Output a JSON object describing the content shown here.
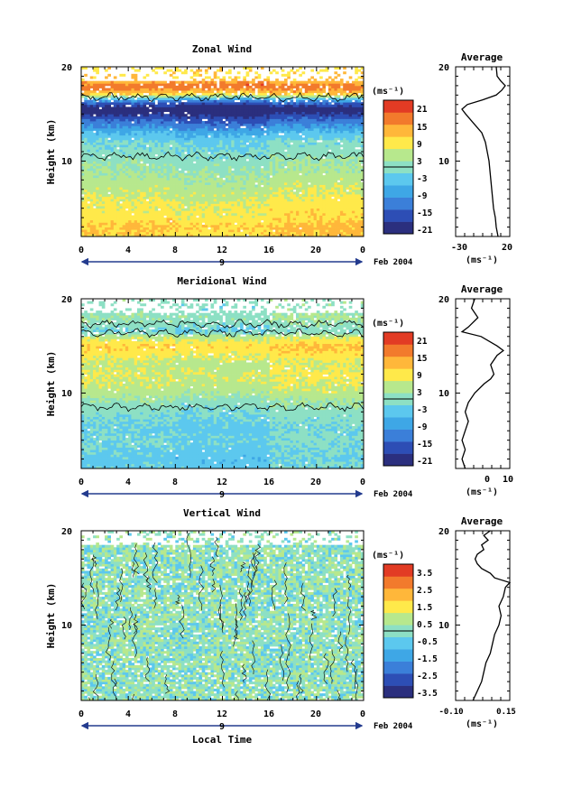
{
  "chart_data": [
    {
      "type": "heatmap",
      "title": "Zonal Wind",
      "ylabel": "Height (km)",
      "xlabel": "",
      "unit": "(ms⁻¹)",
      "x_ticks": [
        "0",
        "4",
        "8",
        "12",
        "16",
        "20",
        "0"
      ],
      "y_ticks": [
        "20",
        "10"
      ],
      "date_marker": "9",
      "date_label": "Feb 2004",
      "xlim": [
        0,
        24
      ],
      "ylim": [
        2,
        20
      ],
      "colorbar": {
        "ticks": [
          "21",
          "15",
          "9",
          "3",
          "-3",
          "-9",
          "-15",
          "-21"
        ],
        "range": [
          -24,
          24
        ]
      },
      "profiles": [
        [
          [
            2,
            10
          ],
          [
            3,
            12
          ],
          [
            4,
            9
          ],
          [
            5,
            8
          ],
          [
            6,
            7
          ],
          [
            7,
            5
          ],
          [
            8,
            4
          ],
          [
            9,
            2
          ],
          [
            10,
            1
          ],
          [
            11,
            -1
          ],
          [
            12,
            -2
          ],
          [
            13,
            -6
          ],
          [
            14,
            -13
          ],
          [
            15,
            -20
          ],
          [
            15.5,
            -26
          ],
          [
            16.5,
            -10
          ],
          [
            17,
            8
          ],
          [
            17.5,
            15
          ],
          [
            18,
            18
          ],
          [
            18.5,
            13
          ],
          [
            19,
            10
          ],
          [
            20,
            10
          ]
        ],
        [
          [
            2,
            9
          ],
          [
            3,
            11
          ],
          [
            4,
            8
          ],
          [
            5,
            7
          ],
          [
            6,
            6
          ],
          [
            7,
            4
          ],
          [
            8,
            3
          ],
          [
            9,
            1
          ],
          [
            10,
            0
          ],
          [
            11,
            -2
          ],
          [
            12,
            -3
          ],
          [
            13,
            -8
          ],
          [
            14,
            -15
          ],
          [
            15,
            -22
          ],
          [
            15.5,
            -28
          ],
          [
            16.5,
            -12
          ],
          [
            17,
            6
          ],
          [
            17.5,
            14
          ],
          [
            18,
            19
          ],
          [
            18.5,
            14
          ],
          [
            19,
            9
          ],
          [
            20,
            10
          ]
        ],
        [
          [
            2,
            11
          ],
          [
            3,
            13
          ],
          [
            4,
            10
          ],
          [
            5,
            9
          ],
          [
            6,
            8
          ],
          [
            7,
            6
          ],
          [
            8,
            5
          ],
          [
            9,
            3
          ],
          [
            10,
            2
          ],
          [
            11,
            0
          ],
          [
            12,
            -1
          ],
          [
            13,
            -5
          ],
          [
            14,
            -12
          ],
          [
            15,
            -19
          ],
          [
            15.5,
            -25
          ],
          [
            16.5,
            -9
          ],
          [
            17,
            9
          ],
          [
            17.5,
            16
          ],
          [
            18,
            17
          ],
          [
            18.5,
            12
          ],
          [
            19,
            11
          ],
          [
            20,
            9
          ]
        ]
      ],
      "contour_level": 0,
      "average_profile": {
        "title": "Average",
        "xlabel": "(ms⁻¹)",
        "x_ticks": [
          "-30",
          "20"
        ],
        "xlim": [
          -35,
          25
        ],
        "y_ticks": [
          "20",
          "10"
        ],
        "height": [
          2,
          3,
          4,
          5,
          6,
          7,
          8,
          9,
          10,
          11,
          12,
          13,
          14,
          15,
          15.5,
          16,
          16.5,
          17,
          17.5,
          18,
          18.5,
          19,
          20
        ],
        "value": [
          12,
          10,
          9,
          7,
          6,
          5,
          4,
          3,
          2,
          0,
          -2,
          -6,
          -15,
          -24,
          -28,
          -22,
          -5,
          10,
          16,
          20,
          15,
          11,
          10
        ]
      }
    },
    {
      "type": "heatmap",
      "title": "Meridional Wind",
      "ylabel": "Height (km)",
      "xlabel": "",
      "unit": "(ms⁻¹)",
      "x_ticks": [
        "0",
        "4",
        "8",
        "12",
        "16",
        "20",
        "0"
      ],
      "y_ticks": [
        "20",
        "10"
      ],
      "date_marker": "9",
      "date_label": "Feb 2004",
      "xlim": [
        0,
        24
      ],
      "ylim": [
        2,
        20
      ],
      "colorbar": {
        "ticks": [
          "21",
          "15",
          "9",
          "3",
          "-3",
          "-9",
          "-15",
          "-21"
        ],
        "range": [
          -24,
          24
        ]
      },
      "profiles": [
        [
          [
            2,
            -3
          ],
          [
            3,
            -4
          ],
          [
            4,
            -3
          ],
          [
            5,
            -2
          ],
          [
            6,
            -3
          ],
          [
            7,
            -2
          ],
          [
            8,
            -1
          ],
          [
            9,
            1
          ],
          [
            10,
            4
          ],
          [
            11,
            6
          ],
          [
            12,
            7
          ],
          [
            13,
            5
          ],
          [
            14,
            8
          ],
          [
            15,
            11
          ],
          [
            16,
            5
          ],
          [
            16.5,
            -2
          ],
          [
            17,
            -1
          ],
          [
            18,
            2
          ],
          [
            19,
            0
          ],
          [
            20,
            1
          ]
        ],
        [
          [
            2,
            -4
          ],
          [
            3,
            -5
          ],
          [
            4,
            -4
          ],
          [
            5,
            -3
          ],
          [
            6,
            -4
          ],
          [
            7,
            -3
          ],
          [
            8,
            -2
          ],
          [
            9,
            0
          ],
          [
            10,
            3
          ],
          [
            11,
            5
          ],
          [
            12,
            6
          ],
          [
            13,
            4
          ],
          [
            14,
            7
          ],
          [
            15,
            10
          ],
          [
            16,
            4
          ],
          [
            16.5,
            -3
          ],
          [
            17,
            -2
          ],
          [
            18,
            1
          ],
          [
            19,
            -1
          ],
          [
            20,
            0
          ]
        ],
        [
          [
            2,
            -2
          ],
          [
            3,
            -3
          ],
          [
            4,
            -2
          ],
          [
            5,
            -1
          ],
          [
            6,
            -2
          ],
          [
            7,
            -1
          ],
          [
            8,
            0
          ],
          [
            9,
            2
          ],
          [
            10,
            5
          ],
          [
            11,
            7
          ],
          [
            12,
            8
          ],
          [
            13,
            6
          ],
          [
            14,
            9
          ],
          [
            15,
            12
          ],
          [
            16,
            6
          ],
          [
            16.5,
            -1
          ],
          [
            17,
            0
          ],
          [
            18,
            3
          ],
          [
            19,
            1
          ],
          [
            20,
            2
          ]
        ]
      ],
      "contour_level": 0,
      "average_profile": {
        "title": "Average",
        "xlabel": "(ms⁻¹)",
        "x_ticks": [
          "0",
          "10"
        ],
        "xlim": [
          -6,
          11
        ],
        "y_ticks": [
          "20",
          "10"
        ],
        "height": [
          2,
          3,
          4,
          5,
          6,
          7,
          8,
          9,
          10,
          11,
          11.5,
          12,
          13,
          14,
          14.5,
          15,
          16,
          16.5,
          17,
          18,
          19,
          20
        ],
        "value": [
          -3,
          -4,
          -3,
          -4,
          -3,
          -2,
          -3,
          -2,
          0,
          3,
          5,
          6,
          5,
          7,
          9,
          7,
          2,
          -4,
          -2,
          1,
          -1,
          0
        ]
      }
    },
    {
      "type": "heatmap",
      "title": "Vertical Wind",
      "ylabel": "Height (km)",
      "xlabel": "Local Time",
      "unit": "(ms⁻¹)",
      "x_ticks": [
        "0",
        "4",
        "8",
        "12",
        "16",
        "20",
        "0"
      ],
      "y_ticks": [
        "20",
        "10"
      ],
      "date_marker": "9",
      "date_label": "Feb 2004",
      "xlim": [
        0,
        24
      ],
      "ylim": [
        2,
        20
      ],
      "colorbar": {
        "ticks": [
          "3.5",
          "2.5",
          "1.5",
          "0.5",
          "-0.5",
          "-1.5",
          "-2.5",
          "-3.5"
        ],
        "range": [
          -4,
          4
        ]
      },
      "profiles": [
        [
          [
            2,
            -0.2
          ],
          [
            20,
            0.2
          ]
        ]
      ],
      "contour_level": 0,
      "average_profile": {
        "title": "Average",
        "xlabel": "(ms⁻¹)",
        "x_ticks": [
          "-0.10",
          "0.15"
        ],
        "xlim": [
          -0.1,
          0.15
        ],
        "y_ticks": [
          "20",
          "10"
        ],
        "height": [
          2,
          3,
          4,
          5,
          6,
          7,
          8,
          9,
          10,
          11,
          12,
          13,
          14,
          14.5,
          15,
          15.5,
          16,
          16.5,
          17,
          17.5,
          18,
          18.5,
          19,
          19.5,
          20
        ],
        "value": [
          -0.02,
          0.0,
          0.02,
          0.03,
          0.04,
          0.06,
          0.07,
          0.08,
          0.1,
          0.11,
          0.1,
          0.12,
          0.13,
          0.15,
          0.08,
          0.06,
          0.02,
          0.0,
          -0.01,
          0.0,
          0.03,
          0.02,
          0.05,
          0.03,
          0.06
        ]
      }
    }
  ]
}
